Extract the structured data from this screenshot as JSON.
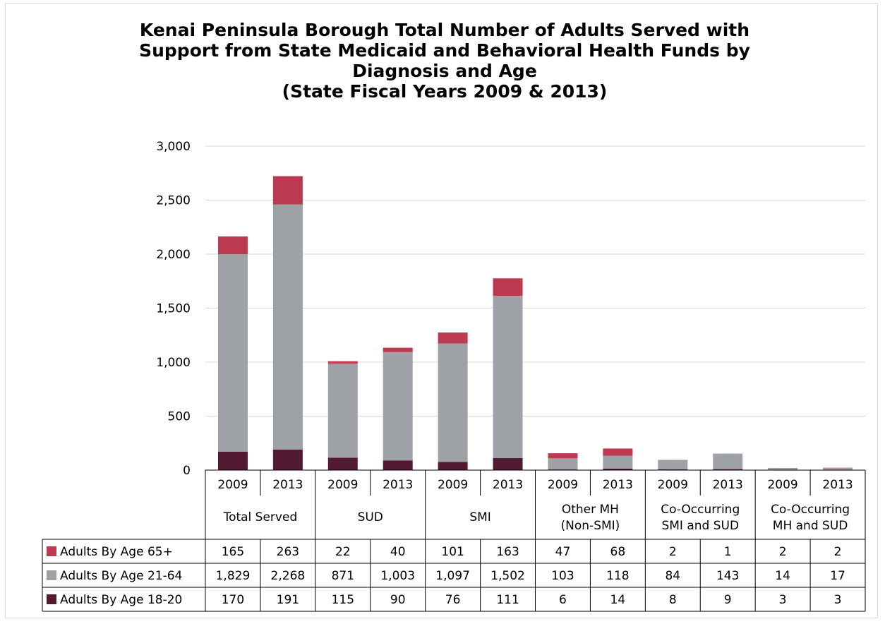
{
  "chart_data": {
    "type": "bar",
    "stacked": true,
    "title": [
      "Kenai Peninsula Borough Total Number of Adults Served with",
      "Support from State Medicaid and Behavioral Health Funds by",
      "Diagnosis and Age",
      "(State Fiscal Years 2009 & 2013)"
    ],
    "groups": [
      {
        "label": [
          "Total Served"
        ]
      },
      {
        "label": [
          "SUD"
        ]
      },
      {
        "label": [
          "SMI"
        ]
      },
      {
        "label": [
          "Other MH",
          "(Non-SMI)"
        ]
      },
      {
        "label": [
          "Co-Occurring",
          "SMI and SUD"
        ]
      },
      {
        "label": [
          "Co-Occurring",
          "MH and SUD"
        ]
      }
    ],
    "years": [
      "2009",
      "2013"
    ],
    "ylim": [
      0,
      3000
    ],
    "yticks": [
      "0",
      "500",
      "1,000",
      "1,500",
      "2,000",
      "2,500",
      "3,000"
    ],
    "ytick_values": [
      0,
      500,
      1000,
      1500,
      2000,
      2500,
      3000
    ],
    "grid": true,
    "legend": "data-table",
    "series": [
      {
        "name": "Adults By Age 65+",
        "color": "#bb3a50",
        "values": [
          165,
          263,
          22,
          40,
          101,
          163,
          47,
          68,
          2,
          1,
          2,
          2
        ],
        "labels": [
          "165",
          "263",
          "22",
          "40",
          "101",
          "163",
          "47",
          "68",
          "2",
          "1",
          "2",
          "2"
        ]
      },
      {
        "name": "Adults By Age 21-64",
        "color": "#9ea1a6",
        "values": [
          1829,
          2268,
          871,
          1003,
          1097,
          1502,
          103,
          118,
          84,
          143,
          14,
          17
        ],
        "labels": [
          "1,829",
          "2,268",
          "871",
          "1,003",
          "1,097",
          "1,502",
          "103",
          "118",
          "84",
          "143",
          "14",
          "17"
        ]
      },
      {
        "name": "Adults By Age 18-20",
        "color": "#521a33",
        "values": [
          170,
          191,
          115,
          90,
          76,
          111,
          6,
          14,
          8,
          9,
          3,
          3
        ],
        "labels": [
          "170",
          "191",
          "115",
          "90",
          "76",
          "111",
          "6",
          "14",
          "8",
          "9",
          "3",
          "3"
        ]
      }
    ]
  }
}
